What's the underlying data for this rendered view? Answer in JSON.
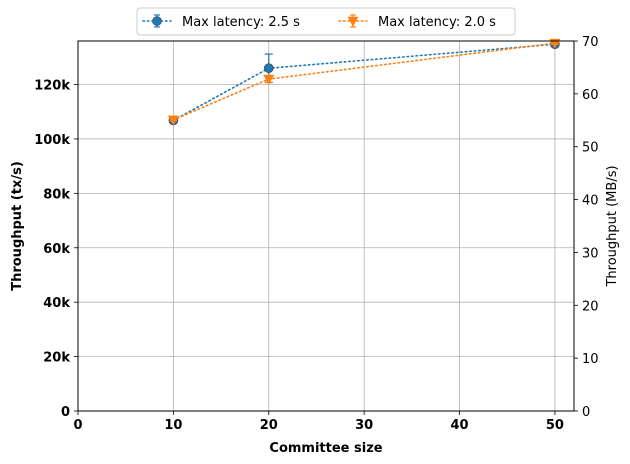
{
  "chart_data": {
    "type": "line",
    "xlabel": "Committee size",
    "ylabel": "Throughput (tx/s)",
    "ylabel_right": "Throughput (MB/s)",
    "xlim": [
      0,
      52
    ],
    "ylim": [
      0,
      136000
    ],
    "ylim_right": [
      0,
      70
    ],
    "x_ticks": [
      0,
      10,
      20,
      30,
      40,
      50
    ],
    "x_tick_labels": [
      "0",
      "10",
      "20",
      "30",
      "40",
      "50"
    ],
    "y_ticks": [
      0,
      20000,
      40000,
      60000,
      80000,
      100000,
      120000
    ],
    "y_tick_labels": [
      "0",
      "20k",
      "40k",
      "60k",
      "80k",
      "100k",
      "120k"
    ],
    "y_right_ticks": [
      0,
      10,
      20,
      30,
      40,
      50,
      60,
      70
    ],
    "y_right_tick_labels": [
      "0",
      "10",
      "20",
      "30",
      "40",
      "50",
      "60",
      "70"
    ],
    "grid": true,
    "legend_position": "top, outside, two columns",
    "series": [
      {
        "name": "Max latency: 2.5 s",
        "color": "#1f77b4",
        "marker": "circle",
        "line_style": "dotted",
        "x": [
          10,
          20,
          50
        ],
        "y": [
          106800,
          126000,
          134800
        ],
        "error": [
          500,
          5200,
          700
        ]
      },
      {
        "name": "Max latency: 2.0 s",
        "color": "#ff7f0e",
        "marker": "triangle-down",
        "line_style": "dotted",
        "x": [
          10,
          20,
          50
        ],
        "y": [
          107000,
          122000,
          135200
        ],
        "error": [
          400,
          1300,
          400
        ]
      }
    ]
  }
}
